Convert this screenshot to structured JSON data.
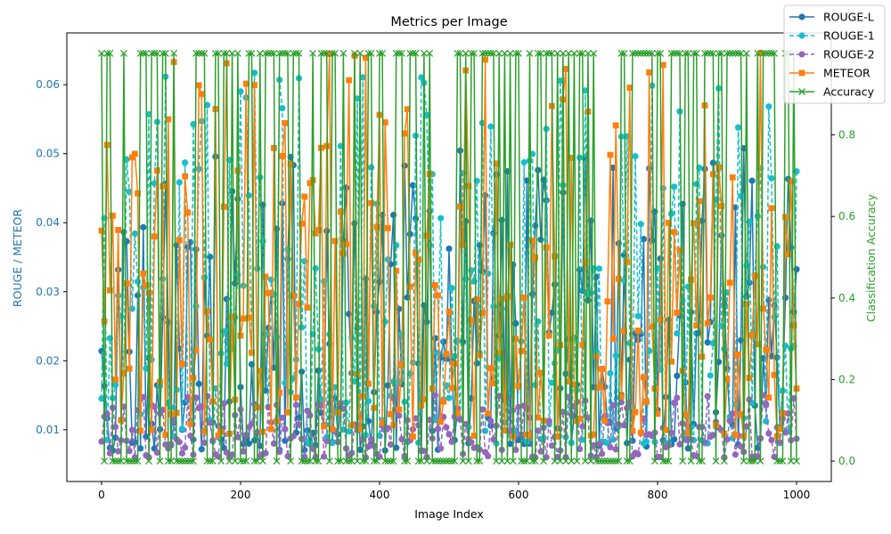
{
  "chart_data": {
    "type": "line",
    "title": "Metrics per Image",
    "xlabel": "Image Index",
    "ylabel_left": "ROUGE / METEOR",
    "ylabel_right": "Classification Accuracy",
    "xlim": [
      -50,
      1050
    ],
    "ylim_left": [
      0.0025,
      0.0675
    ],
    "ylim_right": [
      -0.05,
      1.05
    ],
    "x_ticks": [
      0,
      200,
      400,
      600,
      800,
      1000
    ],
    "y_ticks_left": [
      0.01,
      0.02,
      0.03,
      0.04,
      0.05,
      0.06
    ],
    "y_ticks_right": [
      0.0,
      0.2,
      0.4,
      0.6,
      0.8
    ],
    "grid": false,
    "legend_position": "top-right",
    "x_start": 0,
    "x_step": 4,
    "x_count": 251,
    "series": [
      {
        "name": "ROUGE-L",
        "axis": "left",
        "color": "#1f77b4",
        "dash": "solid",
        "marker": "circle",
        "min": 0.007,
        "max": 0.051,
        "mean": 0.024
      },
      {
        "name": "ROUGE-1",
        "axis": "left",
        "color": "#17becf",
        "dash": "dashed",
        "marker": "circle",
        "min": 0.008,
        "max": 0.062,
        "mean": 0.028
      },
      {
        "name": "ROUGE-2",
        "axis": "left",
        "color": "#9467bd",
        "dash": "dashed",
        "marker": "circle",
        "min": 0.006,
        "max": 0.015,
        "mean": 0.01
      },
      {
        "name": "METEOR",
        "axis": "left",
        "color": "#ff7f0e",
        "dash": "solid",
        "marker": "square",
        "min": 0.009,
        "max": 0.065,
        "mean": 0.028
      },
      {
        "name": "Accuracy",
        "axis": "right",
        "color": "#2ca02c",
        "dash": "solid",
        "marker": "x",
        "values": [
          0,
          1
        ]
      }
    ],
    "colors": {
      "left_axis": "#1f77b4",
      "right_axis": "#2ca02c",
      "axis_line": "#000000"
    }
  }
}
